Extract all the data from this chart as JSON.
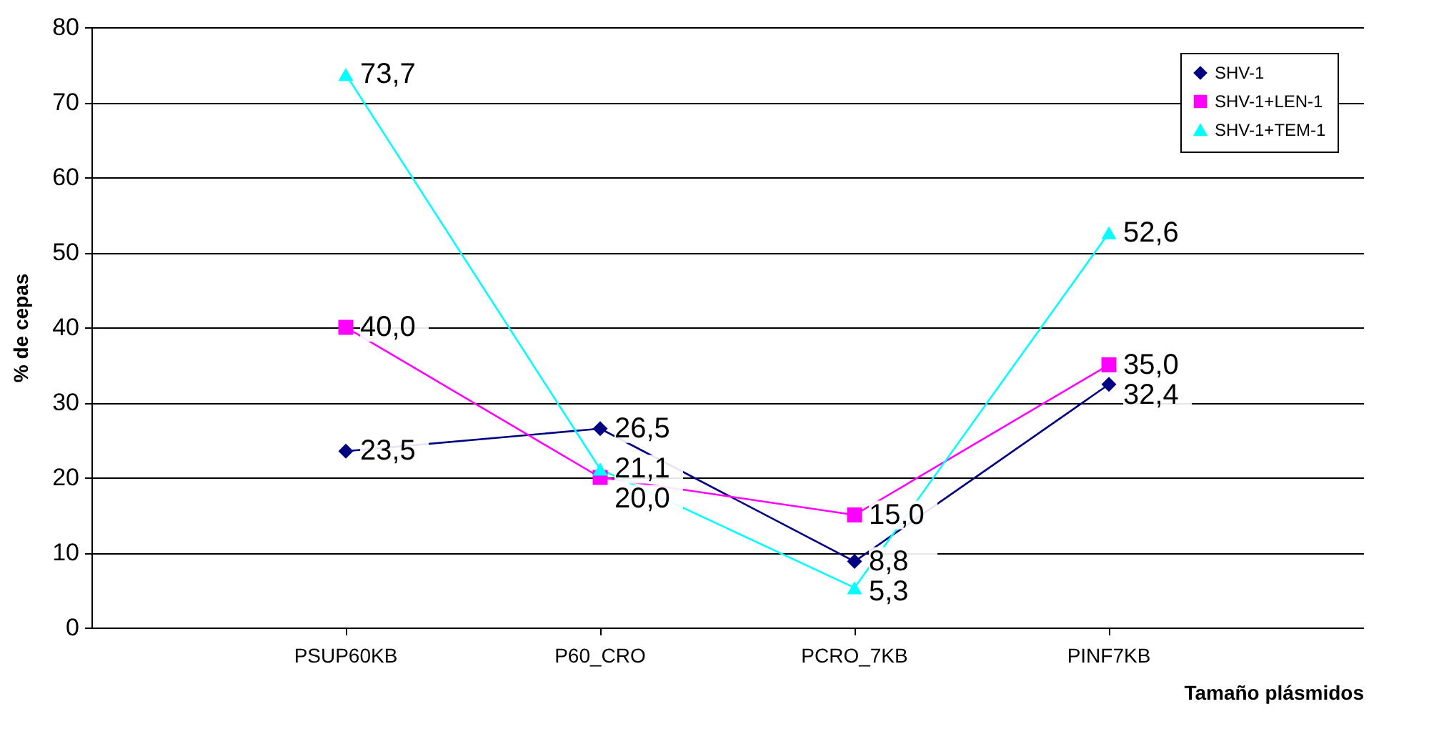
{
  "chart_data": {
    "type": "line",
    "xlabel": "Tamaño plásmidos",
    "ylabel": "% de cepas",
    "categories": [
      "PSUP60KB",
      "P60_CRO",
      "PCRO_7KB",
      "PINF7KB"
    ],
    "series": [
      {
        "name": "SHV-1",
        "color": "#000080",
        "marker": "diamond",
        "values": [
          23.5,
          26.5,
          8.8,
          32.4
        ],
        "value_labels": [
          "23,5",
          "26,5",
          "8,8",
          "32,4"
        ]
      },
      {
        "name": "SHV-1+LEN-1",
        "color": "#ff00ff",
        "marker": "square",
        "values": [
          40.0,
          20.0,
          15.0,
          35.0
        ],
        "value_labels": [
          "40,0",
          "20,0",
          "15,0",
          "35,0"
        ]
      },
      {
        "name": "SHV-1+TEM-1",
        "color": "#00ffff",
        "marker": "triangle",
        "values": [
          73.7,
          21.1,
          5.3,
          52.6
        ],
        "value_labels": [
          "73,7",
          "21,1",
          "5,3",
          "52,6"
        ]
      }
    ],
    "ylim": [
      0,
      80
    ],
    "yticks": [
      0,
      10,
      20,
      30,
      40,
      50,
      60,
      70,
      80
    ],
    "grid": "y",
    "legend": "top right"
  }
}
